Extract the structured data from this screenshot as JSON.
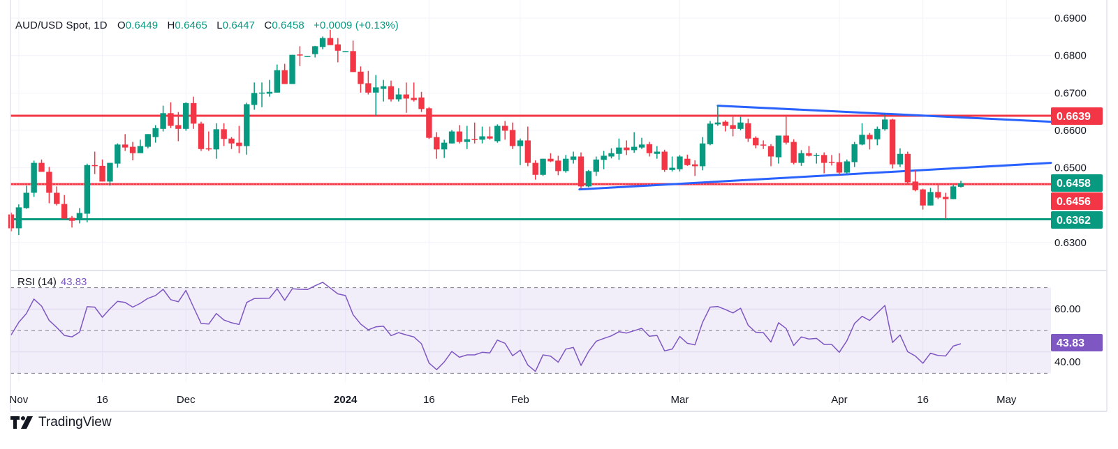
{
  "header": {
    "symbol": "AUD/USD Spot, 1D",
    "open_label": "O",
    "open": "0.6449",
    "high_label": "H",
    "high": "0.6465",
    "low_label": "L",
    "low": "0.6447",
    "close_label": "C",
    "close": "0.6458",
    "change": "+0.0009 (+0.13%)"
  },
  "rsi_legend": {
    "label": "RSI (14)",
    "value": "43.83"
  },
  "price_tags": {
    "resistance": "0.6639",
    "last": "0.6458",
    "level": "0.6456",
    "support": "0.6362",
    "rsi": "43.83"
  },
  "brand": {
    "name": "TradingView"
  },
  "colors": {
    "up": "#089981",
    "down": "#f23645",
    "trend": "#2962ff",
    "rsi": "#7e57c2"
  },
  "chart_data": {
    "type": "candlestick",
    "title": "AUD/USD Spot, 1D",
    "ylim": [
      0.6225,
      0.6945
    ],
    "price_ticks": [
      "0.6900",
      "0.6800",
      "0.6700",
      "0.6600",
      "0.6500",
      "0.6300"
    ],
    "x_labels": [
      {
        "label": "Nov",
        "index": 1
      },
      {
        "label": "16",
        "index": 12
      },
      {
        "label": "Dec",
        "index": 23
      },
      {
        "label": "2024",
        "index": 44,
        "bold": true
      },
      {
        "label": "16",
        "index": 55
      },
      {
        "label": "Feb",
        "index": 67
      },
      {
        "label": "Mar",
        "index": 88
      },
      {
        "label": "Apr",
        "index": 109
      },
      {
        "label": "16",
        "index": 120
      },
      {
        "label": "May",
        "index": 131
      }
    ],
    "candles_ohlc": [
      [
        0.6375,
        0.638,
        0.633,
        0.6338
      ],
      [
        0.6338,
        0.6402,
        0.632,
        0.6394
      ],
      [
        0.6392,
        0.6452,
        0.639,
        0.6433
      ],
      [
        0.6433,
        0.6519,
        0.6422,
        0.6513
      ],
      [
        0.6513,
        0.6522,
        0.6489,
        0.6489
      ],
      [
        0.6489,
        0.6502,
        0.6405,
        0.6433
      ],
      [
        0.6433,
        0.645,
        0.6399,
        0.6403
      ],
      [
        0.6403,
        0.6427,
        0.6364,
        0.6364
      ],
      [
        0.6366,
        0.6371,
        0.634,
        0.6358
      ],
      [
        0.6362,
        0.6392,
        0.6351,
        0.6379
      ],
      [
        0.6377,
        0.6511,
        0.6354,
        0.6507
      ],
      [
        0.6507,
        0.6543,
        0.6483,
        0.6505
      ],
      [
        0.6505,
        0.6522,
        0.6463,
        0.6463
      ],
      [
        0.6463,
        0.6513,
        0.6452,
        0.6513
      ],
      [
        0.6511,
        0.6565,
        0.65,
        0.6562
      ],
      [
        0.6562,
        0.659,
        0.6545,
        0.6554
      ],
      [
        0.6556,
        0.6569,
        0.652,
        0.6539
      ],
      [
        0.6539,
        0.6575,
        0.6539,
        0.6558
      ],
      [
        0.6556,
        0.659,
        0.6552,
        0.659
      ],
      [
        0.6582,
        0.6614,
        0.6567,
        0.6606
      ],
      [
        0.6604,
        0.6666,
        0.6597,
        0.6646
      ],
      [
        0.6646,
        0.6675,
        0.6606,
        0.6612
      ],
      [
        0.6614,
        0.6649,
        0.6571,
        0.6604
      ],
      [
        0.6604,
        0.6675,
        0.6599,
        0.6673
      ],
      [
        0.6673,
        0.669,
        0.6604,
        0.6618
      ],
      [
        0.6618,
        0.6623,
        0.6545,
        0.655
      ],
      [
        0.6552,
        0.6597,
        0.6545,
        0.6549
      ],
      [
        0.6549,
        0.6619,
        0.6524,
        0.6603
      ],
      [
        0.6603,
        0.6619,
        0.6558,
        0.6577
      ],
      [
        0.6578,
        0.6582,
        0.655,
        0.6565
      ],
      [
        0.6567,
        0.6612,
        0.6539,
        0.6558
      ],
      [
        0.6558,
        0.6674,
        0.6535,
        0.667
      ],
      [
        0.6668,
        0.6728,
        0.6655,
        0.67
      ],
      [
        0.6699,
        0.6728,
        0.6662,
        0.6701
      ],
      [
        0.6698,
        0.6735,
        0.669,
        0.6703
      ],
      [
        0.6701,
        0.6776,
        0.6701,
        0.6761
      ],
      [
        0.6761,
        0.6778,
        0.6724,
        0.6724
      ],
      [
        0.6724,
        0.6802,
        0.6724,
        0.6802
      ],
      [
        0.6803,
        0.6825,
        0.6772,
        0.6801
      ],
      [
        0.6797,
        0.6799,
        0.6797,
        0.6799
      ],
      [
        0.6804,
        0.6826,
        0.6795,
        0.6825
      ],
      [
        0.6823,
        0.6851,
        0.6817,
        0.6847
      ],
      [
        0.6847,
        0.6869,
        0.6828,
        0.6828
      ],
      [
        0.683,
        0.6847,
        0.6782,
        0.6813
      ],
      [
        0.6811,
        0.6812,
        0.6811,
        0.6812
      ],
      [
        0.6812,
        0.684,
        0.6756,
        0.6756
      ],
      [
        0.6757,
        0.6771,
        0.6701,
        0.6724
      ],
      [
        0.6726,
        0.6759,
        0.6696,
        0.6701
      ],
      [
        0.6701,
        0.6748,
        0.664,
        0.6715
      ],
      [
        0.6711,
        0.6735,
        0.6677,
        0.6718
      ],
      [
        0.6718,
        0.6733,
        0.6677,
        0.6683
      ],
      [
        0.6683,
        0.6713,
        0.6677,
        0.6696
      ],
      [
        0.6696,
        0.6728,
        0.6647,
        0.6685
      ],
      [
        0.6687,
        0.6728,
        0.6677,
        0.6681
      ],
      [
        0.6688,
        0.6703,
        0.6649,
        0.6657
      ],
      [
        0.6659,
        0.6662,
        0.6577,
        0.658
      ],
      [
        0.6582,
        0.6595,
        0.6524,
        0.6549
      ],
      [
        0.6549,
        0.6575,
        0.6526,
        0.6567
      ],
      [
        0.6565,
        0.6601,
        0.6565,
        0.6597
      ],
      [
        0.6597,
        0.6614,
        0.6565,
        0.6569
      ],
      [
        0.6569,
        0.6612,
        0.655,
        0.6576
      ],
      [
        0.6577,
        0.6621,
        0.6565,
        0.6575
      ],
      [
        0.6575,
        0.661,
        0.6565,
        0.6584
      ],
      [
        0.6584,
        0.661,
        0.6575,
        0.6578
      ],
      [
        0.6571,
        0.6616,
        0.6567,
        0.6612
      ],
      [
        0.6612,
        0.6625,
        0.6575,
        0.6599
      ],
      [
        0.6601,
        0.6621,
        0.655,
        0.6558
      ],
      [
        0.6558,
        0.6578,
        0.6507,
        0.6573
      ],
      [
        0.6573,
        0.661,
        0.6504,
        0.6513
      ],
      [
        0.6513,
        0.652,
        0.6468,
        0.6481
      ],
      [
        0.6481,
        0.6524,
        0.6478,
        0.6524
      ],
      [
        0.6524,
        0.6539,
        0.6515,
        0.6517
      ],
      [
        0.6519,
        0.6532,
        0.648,
        0.6491
      ],
      [
        0.6491,
        0.6534,
        0.6487,
        0.6524
      ],
      [
        0.6521,
        0.6543,
        0.6511,
        0.653
      ],
      [
        0.653,
        0.6541,
        0.6444,
        0.645
      ],
      [
        0.645,
        0.6494,
        0.6448,
        0.6491
      ],
      [
        0.6489,
        0.653,
        0.6478,
        0.6522
      ],
      [
        0.6521,
        0.6545,
        0.6496,
        0.6532
      ],
      [
        0.653,
        0.6552,
        0.6525,
        0.6539
      ],
      [
        0.6537,
        0.6578,
        0.6521,
        0.6554
      ],
      [
        0.6554,
        0.6573,
        0.6534,
        0.6547
      ],
      [
        0.6547,
        0.6595,
        0.654,
        0.6556
      ],
      [
        0.6554,
        0.658,
        0.655,
        0.6562
      ],
      [
        0.6563,
        0.6569,
        0.653,
        0.6539
      ],
      [
        0.6537,
        0.6558,
        0.6524,
        0.6543
      ],
      [
        0.6543,
        0.6548,
        0.6489,
        0.6494
      ],
      [
        0.6494,
        0.653,
        0.649,
        0.65
      ],
      [
        0.6496,
        0.6534,
        0.649,
        0.653
      ],
      [
        0.6524,
        0.6535,
        0.6505,
        0.6507
      ],
      [
        0.6509,
        0.652,
        0.6478,
        0.6504
      ],
      [
        0.6504,
        0.6582,
        0.6493,
        0.6565
      ],
      [
        0.6563,
        0.6625,
        0.656,
        0.6618
      ],
      [
        0.6616,
        0.6668,
        0.6612,
        0.6621
      ],
      [
        0.6623,
        0.6627,
        0.6597,
        0.6612
      ],
      [
        0.6614,
        0.6636,
        0.6584,
        0.6604
      ],
      [
        0.6604,
        0.6636,
        0.66,
        0.6621
      ],
      [
        0.6619,
        0.6631,
        0.6569,
        0.6578
      ],
      [
        0.658,
        0.6584,
        0.6552,
        0.656
      ],
      [
        0.6562,
        0.6573,
        0.655,
        0.6561
      ],
      [
        0.6558,
        0.6563,
        0.6504,
        0.653
      ],
      [
        0.6528,
        0.6586,
        0.6511,
        0.6586
      ],
      [
        0.6586,
        0.6636,
        0.6562,
        0.6567
      ],
      [
        0.6569,
        0.6576,
        0.6509,
        0.6513
      ],
      [
        0.6513,
        0.6547,
        0.6505,
        0.6539
      ],
      [
        0.6539,
        0.6558,
        0.653,
        0.6532
      ],
      [
        0.6533,
        0.6539,
        0.6511,
        0.6534
      ],
      [
        0.6534,
        0.6541,
        0.6485,
        0.6513
      ],
      [
        0.6516,
        0.6534,
        0.6506,
        0.6515
      ],
      [
        0.6515,
        0.6539,
        0.6481,
        0.6487
      ],
      [
        0.6487,
        0.6522,
        0.6485,
        0.6517
      ],
      [
        0.6515,
        0.6569,
        0.6502,
        0.6563
      ],
      [
        0.6562,
        0.6619,
        0.656,
        0.6588
      ],
      [
        0.6588,
        0.6593,
        0.6549,
        0.6576
      ],
      [
        0.6576,
        0.661,
        0.656,
        0.6604
      ],
      [
        0.6603,
        0.6644,
        0.6599,
        0.6629
      ],
      [
        0.6629,
        0.6631,
        0.6498,
        0.6509
      ],
      [
        0.6509,
        0.6552,
        0.6502,
        0.6537
      ],
      [
        0.6537,
        0.6543,
        0.6455,
        0.6461
      ],
      [
        0.6463,
        0.6493,
        0.6437,
        0.644
      ],
      [
        0.6442,
        0.6444,
        0.6388,
        0.6399
      ],
      [
        0.6399,
        0.6446,
        0.6399,
        0.6435
      ],
      [
        0.6435,
        0.6455,
        0.6416,
        0.642
      ],
      [
        0.6422,
        0.6433,
        0.6364,
        0.6416
      ],
      [
        0.6416,
        0.6455,
        0.6416,
        0.645
      ],
      [
        0.6449,
        0.6465,
        0.6447,
        0.6458
      ]
    ],
    "horizontal_levels": [
      {
        "price": 0.6639,
        "color": "#f23645",
        "style": "solid"
      },
      {
        "price": 0.6456,
        "color": "#f23645",
        "style": "solid-dotted"
      },
      {
        "price": 0.6362,
        "color": "#089981",
        "style": "solid"
      }
    ],
    "trendlines": [
      {
        "from": {
          "index": 93,
          "price": 0.6666
        },
        "to": {
          "index": 136.9,
          "price": 0.6623
        },
        "color": "#2962ff"
      },
      {
        "from": {
          "index": 74.8,
          "price": 0.6442
        },
        "to": {
          "index": 136.9,
          "price": 0.6513
        },
        "color": "#2962ff"
      }
    ],
    "rsi": {
      "period": 14,
      "ylim": [
        22,
        78
      ],
      "band": [
        30,
        70
      ],
      "midline": 50,
      "ticks": [
        "60.00",
        "40.00"
      ],
      "values": [
        47.9,
        53.8,
        57.9,
        64.7,
        61.4,
        54.7,
        51.4,
        47.7,
        47.0,
        49.2,
        61.1,
        60.9,
        56.2,
        60.1,
        63.6,
        63.1,
        60.9,
        62.7,
        65.0,
        66.3,
        69.2,
        64.4,
        63.4,
        68.7,
        60.9,
        53.3,
        53.0,
        57.9,
        54.9,
        53.6,
        52.8,
        63.1,
        64.9,
        65.0,
        65.1,
        69.5,
        64.1,
        69.5,
        69.2,
        69.1,
        70.9,
        72.5,
        69.8,
        67.1,
        66.3,
        57.4,
        53.0,
        50.3,
        51.7,
        52.0,
        47.6,
        49.0,
        47.9,
        47.0,
        43.8,
        34.8,
        31.7,
        35.3,
        40.2,
        37.5,
        38.6,
        38.6,
        39.8,
        39.5,
        45.5,
        44.0,
        38.2,
        40.8,
        33.9,
        30.9,
        38.6,
        38.0,
        35.2,
        41.3,
        42.1,
        33.7,
        40.2,
        45.0,
        46.3,
        47.5,
        49.4,
        48.8,
        49.9,
        51.0,
        47.3,
        47.7,
        40.5,
        41.3,
        47.2,
        44.0,
        43.3,
        53.8,
        60.9,
        61.2,
        59.8,
        58.2,
        60.4,
        52.4,
        49.2,
        49.0,
        44.6,
        53.6,
        50.9,
        43.0,
        47.0,
        46.0,
        46.3,
        43.5,
        43.5,
        39.8,
        45.2,
        53.3,
        56.6,
        54.7,
        58.2,
        61.7,
        44.4,
        47.9,
        40.1,
        38.1,
        34.7,
        39.4,
        38.3,
        38.1,
        42.7,
        43.83
      ]
    }
  }
}
